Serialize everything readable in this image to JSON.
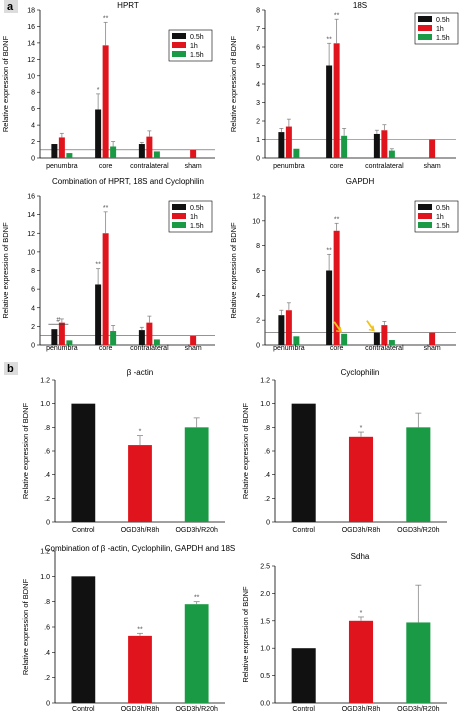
{
  "panel_labels": [
    "a",
    "b"
  ],
  "legend_labels": [
    "0.5h",
    "1h",
    "1.5h"
  ],
  "colors": {
    "s0": "#111111",
    "s1": "#e0141c",
    "s2": "#1a9a45",
    "error": "#888888",
    "arrow": "#f2c21a"
  },
  "chart_data": [
    {
      "type": "bar",
      "title": "HPRT",
      "ylabel": "Relative expression of BDNF",
      "categories": [
        "penumbra",
        "core",
        "contralateral",
        "sham"
      ],
      "ylim": [
        0,
        18
      ],
      "yticks": [
        0,
        2,
        4,
        6,
        8,
        10,
        12,
        14,
        16,
        18
      ],
      "ytick_labels": [
        "0",
        "2",
        "4",
        "6",
        "8",
        "10",
        "12",
        "14",
        "16",
        "18"
      ],
      "reference_line": 1,
      "legend": true,
      "series": [
        {
          "name": "0.5h",
          "values": [
            1.7,
            5.9,
            1.7,
            null
          ],
          "errors": [
            0.0,
            1.9,
            0.2,
            0
          ]
        },
        {
          "name": "1h",
          "values": [
            2.5,
            13.7,
            2.6,
            1.0
          ],
          "errors": [
            0.5,
            2.8,
            0.7,
            0
          ]
        },
        {
          "name": "1.5h",
          "values": [
            0.6,
            1.4,
            0.8,
            null
          ],
          "errors": [
            0.0,
            0.6,
            0.0,
            0
          ]
        }
      ],
      "annotations": [
        {
          "category": 1,
          "series": 0,
          "text": "*"
        },
        {
          "category": 1,
          "series": 1,
          "text": "**"
        }
      ]
    },
    {
      "type": "bar",
      "title": "18S",
      "ylabel": "Relative expression of BDNF",
      "categories": [
        "penumbra",
        "core",
        "contralateral",
        "sham"
      ],
      "ylim": [
        0,
        8
      ],
      "yticks": [
        0,
        1,
        2,
        3,
        4,
        5,
        6,
        7,
        8
      ],
      "ytick_labels": [
        "0",
        "1",
        "2",
        "3",
        "4",
        "5",
        "6",
        "7",
        "8"
      ],
      "reference_line": 1,
      "legend": true,
      "series": [
        {
          "name": "0.5h",
          "values": [
            1.4,
            5.0,
            1.3,
            null
          ],
          "errors": [
            0.2,
            1.2,
            0.2,
            0
          ]
        },
        {
          "name": "1h",
          "values": [
            1.7,
            6.2,
            1.5,
            1.0
          ],
          "errors": [
            0.4,
            1.3,
            0.3,
            0
          ]
        },
        {
          "name": "1.5h",
          "values": [
            0.5,
            1.2,
            0.4,
            null
          ],
          "errors": [
            0.0,
            0.4,
            0.1,
            0
          ]
        }
      ],
      "annotations": [
        {
          "category": 1,
          "series": 0,
          "text": "**"
        },
        {
          "category": 1,
          "series": 1,
          "text": "**"
        }
      ]
    },
    {
      "type": "bar",
      "title": "Combination of HPRT, 18S and Cyclophilin",
      "ylabel": "Relative expression of BDNF",
      "categories": [
        "penumbra",
        "core",
        "contralateral",
        "sham"
      ],
      "ylim": [
        0,
        16
      ],
      "yticks": [
        0,
        2,
        4,
        6,
        8,
        10,
        12,
        14,
        16
      ],
      "ytick_labels": [
        "0",
        "2",
        "4",
        "6",
        "8",
        "10",
        "12",
        "14",
        "16"
      ],
      "reference_line": 1,
      "legend": true,
      "series": [
        {
          "name": "0.5h",
          "values": [
            1.7,
            6.5,
            1.6,
            null
          ],
          "errors": [
            0.0,
            1.7,
            0.3,
            0
          ]
        },
        {
          "name": "1h",
          "values": [
            2.4,
            12.0,
            2.4,
            1.0
          ],
          "errors": [
            0.4,
            2.3,
            0.7,
            0
          ]
        },
        {
          "name": "1.5h",
          "values": [
            0.5,
            1.5,
            0.6,
            null
          ],
          "errors": [
            0.0,
            0.6,
            0.0,
            0
          ]
        }
      ],
      "annotations": [
        {
          "category": 1,
          "series": 0,
          "text": "**"
        },
        {
          "category": 1,
          "series": 1,
          "text": "**"
        },
        {
          "category": 0,
          "series": 0,
          "text": "#",
          "bracket": true
        }
      ]
    },
    {
      "type": "bar",
      "title": "GAPDH",
      "ylabel": "Relative expression of BDNF",
      "categories": [
        "penumbra",
        "core",
        "contralateral",
        "sham"
      ],
      "ylim": [
        0,
        12
      ],
      "yticks": [
        0,
        2,
        4,
        6,
        8,
        10,
        12
      ],
      "ytick_labels": [
        "0",
        "2",
        "4",
        "6",
        "8",
        "10",
        "12"
      ],
      "reference_line": 1,
      "legend": true,
      "series": [
        {
          "name": "0.5h",
          "values": [
            2.4,
            6.0,
            1.0,
            null
          ],
          "errors": [
            0.4,
            1.3,
            0.0,
            0
          ]
        },
        {
          "name": "1h",
          "values": [
            2.8,
            9.2,
            1.6,
            1.0
          ],
          "errors": [
            0.6,
            0.6,
            0.3,
            0
          ]
        },
        {
          "name": "1.5h",
          "values": [
            0.7,
            0.9,
            0.4,
            null
          ],
          "errors": [
            0.0,
            0.0,
            0.0,
            0
          ]
        }
      ],
      "annotations": [
        {
          "category": 1,
          "series": 0,
          "text": "**"
        },
        {
          "category": 1,
          "series": 1,
          "text": "**"
        },
        {
          "category": 1,
          "series": 2,
          "arrow": true
        },
        {
          "category": 2,
          "series": 0,
          "arrow": true
        }
      ]
    },
    {
      "type": "bar",
      "title": "β -actin",
      "ylabel": "Relative expression of BDNF",
      "categories": [
        "Control",
        "OGD3h/R8h",
        "OGD3h/R20h"
      ],
      "ylim": [
        0,
        1.2
      ],
      "yticks": [
        0,
        0.2,
        0.4,
        0.6,
        0.8,
        1.0,
        1.2
      ],
      "ytick_labels": [
        "0",
        ".2",
        ".4",
        ".6",
        ".8",
        "1.0",
        "1.2"
      ],
      "values": [
        1.0,
        0.65,
        0.8
      ],
      "errors": [
        0,
        0.08,
        0.08
      ],
      "annotations": [
        {
          "category": 1,
          "text": "*"
        }
      ]
    },
    {
      "type": "bar",
      "title": "Cyclophilin",
      "ylabel": "Relative expression of BDNF",
      "categories": [
        "Control",
        "OGD3h/R8h",
        "OGD3h/R20h"
      ],
      "ylim": [
        0,
        1.2
      ],
      "yticks": [
        0,
        0.2,
        0.4,
        0.6,
        0.8,
        1.0,
        1.2
      ],
      "ytick_labels": [
        "0",
        ".2",
        ".4",
        ".6",
        ".8",
        "1.0",
        "1.2"
      ],
      "values": [
        1.0,
        0.72,
        0.8
      ],
      "errors": [
        0,
        0.04,
        0.12
      ],
      "annotations": [
        {
          "category": 1,
          "text": "*"
        }
      ]
    },
    {
      "type": "bar",
      "title": "Combination of β -actin, Cyclophilin, GAPDH and 18S",
      "ylabel": "Relative expression of BDNF",
      "categories": [
        "Control",
        "OGD3h/R8h",
        "OGD3h/R20h"
      ],
      "ylim": [
        0,
        1.2
      ],
      "yticks": [
        0,
        0.2,
        0.4,
        0.6,
        0.8,
        1.0,
        1.2
      ],
      "ytick_labels": [
        "0",
        ".2",
        ".4",
        ".6",
        ".8",
        "1.0",
        "1.2"
      ],
      "values": [
        1.0,
        0.53,
        0.78
      ],
      "errors": [
        0,
        0.02,
        0.02
      ],
      "annotations": [
        {
          "category": 1,
          "text": "**"
        },
        {
          "category": 2,
          "text": "**"
        }
      ]
    },
    {
      "type": "bar",
      "title": "Sdha",
      "ylabel": "Relative expression of BDNF",
      "categories": [
        "Control",
        "OGD3h/R8h",
        "OGD3h/R20h"
      ],
      "ylim": [
        0,
        2.5
      ],
      "yticks": [
        0,
        0.5,
        1.0,
        1.5,
        2.0,
        2.5
      ],
      "ytick_labels": [
        "0.0",
        "0.5",
        "1.0",
        "1.5",
        "2.0",
        "2.5"
      ],
      "values": [
        1.0,
        1.5,
        1.47
      ],
      "errors": [
        0,
        0.07,
        0.68
      ],
      "annotations": [
        {
          "category": 1,
          "text": "*"
        }
      ]
    }
  ]
}
